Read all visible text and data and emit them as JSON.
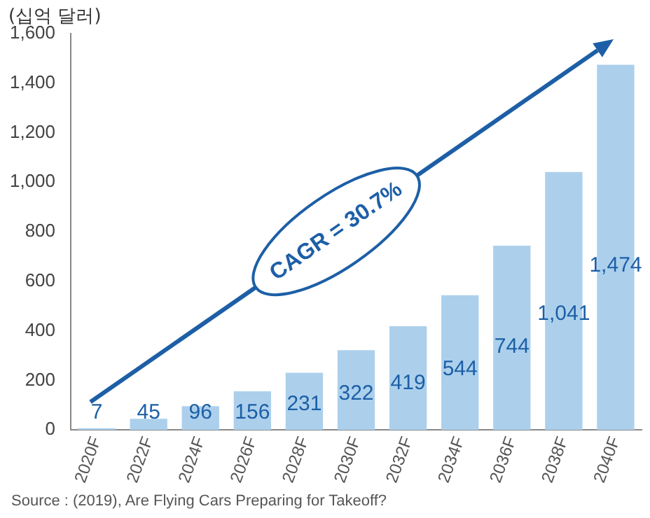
{
  "chart_data": {
    "type": "bar",
    "ylabel": "(십억 달러)",
    "categories": [
      "2020F",
      "2022F",
      "2024F",
      "2026F",
      "2028F",
      "2030F",
      "2032F",
      "2034F",
      "2036F",
      "2038F",
      "2040F"
    ],
    "values": [
      7,
      45,
      96,
      156,
      231,
      322,
      419,
      544,
      744,
      1041,
      1474
    ],
    "value_labels": [
      "7",
      "45",
      "96",
      "156",
      "231",
      "322",
      "419",
      "544",
      "744",
      "1,041",
      "1,474"
    ],
    "color": "#acd0ec",
    "ylim": [
      0,
      1600
    ],
    "yticks": [
      0,
      {
        "value": 200,
        "label": "200"
      },
      {
        "value": 400,
        "label": "400"
      },
      {
        "value": 600,
        "label": "600"
      },
      {
        "value": 800,
        "label": "800"
      },
      {
        "value": 1000,
        "label": "1,000"
      },
      {
        "value": 1200,
        "label": "1,200"
      },
      {
        "value": 1400,
        "label": "1,400"
      },
      {
        "value": 1600,
        "label": "1,600"
      }
    ],
    "grid": false,
    "annotations": [
      "CAGR = 30.7%",
      "Source : (2019), Are Flying Cars Preparing for Takeoff?"
    ]
  }
}
